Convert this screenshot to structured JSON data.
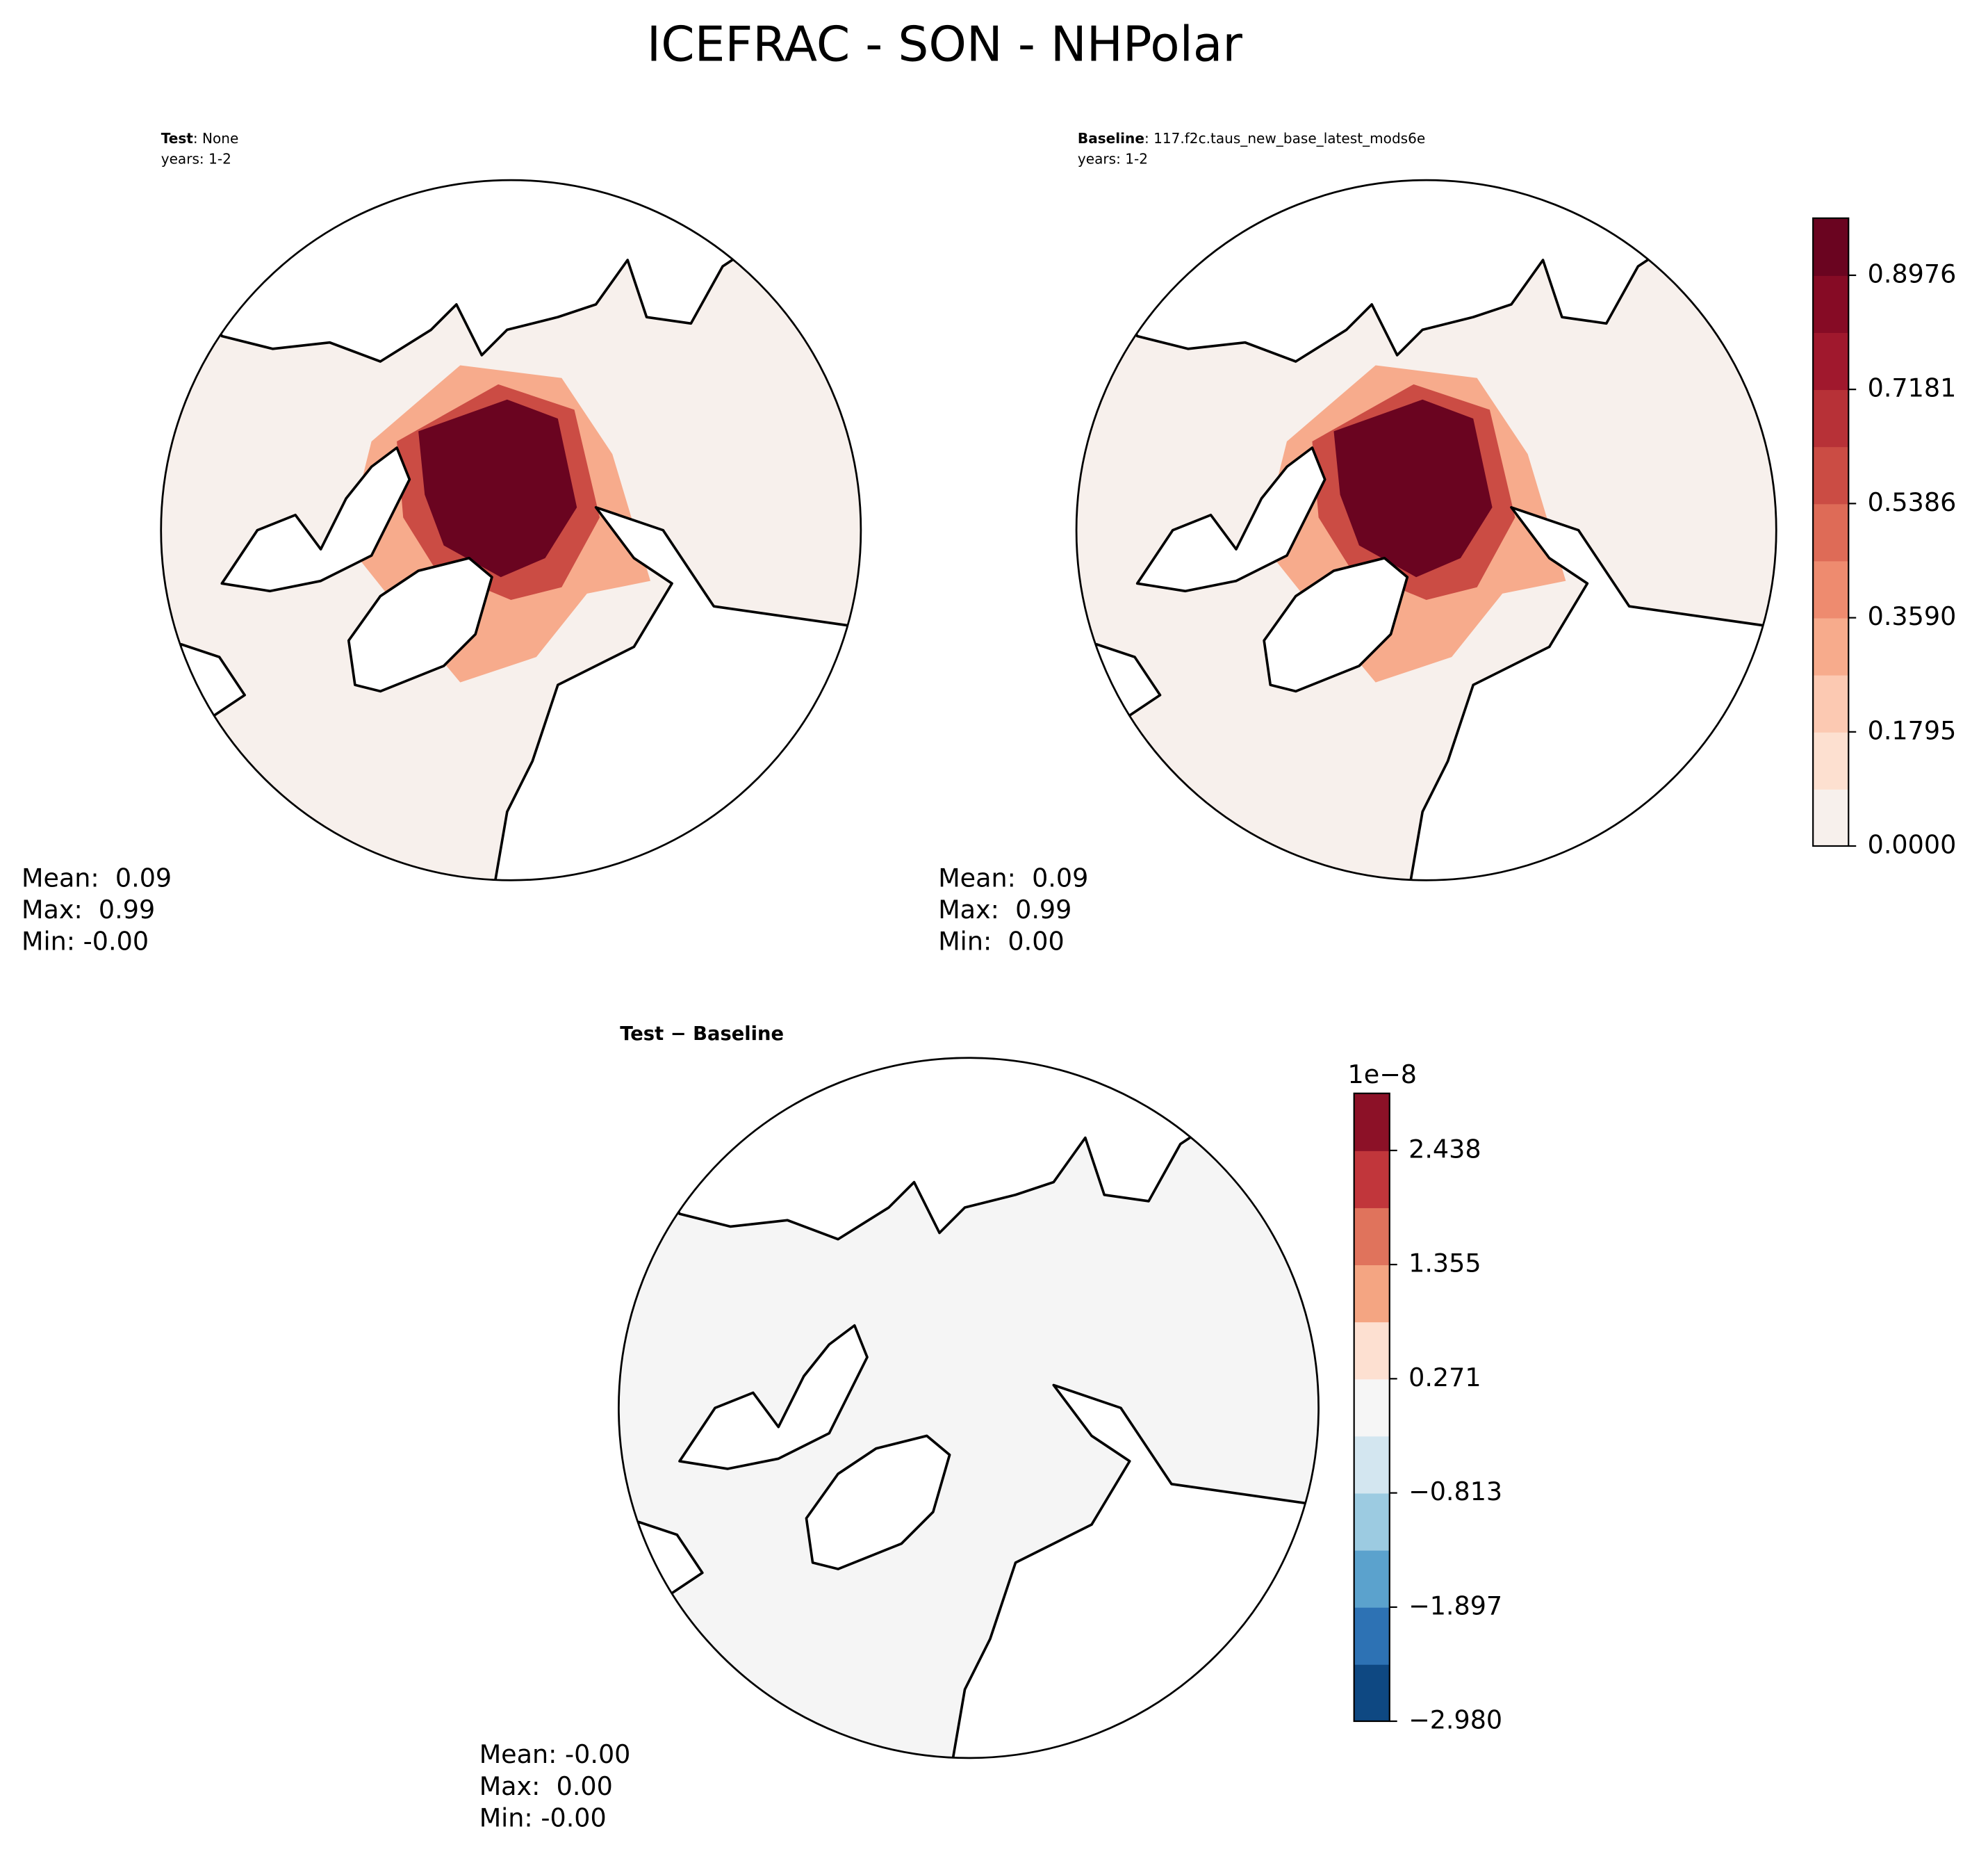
{
  "title": "ICEFRAC - SON - NHPolar",
  "panels": [
    {
      "label": "Test",
      "source": ": None",
      "years": "years: 1-2",
      "stats": [
        "Mean:  0.09",
        "Max:  0.99",
        "Min: -0.00"
      ]
    },
    {
      "label": "Baseline",
      "source": ": 117.f2c.taus_new_base_latest_mods6e",
      "years": "years: 1-2",
      "stats": [
        "Mean:  0.09",
        "Max:  0.99",
        "Min:  0.00"
      ]
    },
    {
      "label": "Test − Baseline",
      "stats": [
        "Mean: -0.00",
        "Max:  0.00",
        "Min: -0.00"
      ]
    }
  ],
  "colorbars": [
    {
      "lim": [
        0,
        0.9874
      ],
      "ticks": [
        {
          "value": 0,
          "label": "0.0000"
        },
        0.1795,
        {
          "value": 0.359,
          "label": "0.3590"
        },
        0.5386,
        0.7181,
        0.8976
      ],
      "colors": [
        "#f7f0ec",
        "#fde0d0",
        "#fcc9b2",
        "#f7ab8c",
        "#ee8b6f",
        "#de6b57",
        "#cb4c44",
        "#b73137",
        "#a0182d",
        "#860b25",
        "#6a0420"
      ]
    },
    {
      "lim": [
        -2.98,
        2.98
      ],
      "offset_label": "1e−8",
      "ticks": [
        {
          "value": -2.98,
          "label": "−2.980"
        },
        {
          "value": -1.897,
          "label": "−1.897"
        },
        {
          "value": -0.813,
          "label": "−0.813"
        },
        0.271,
        1.355,
        2.438
      ],
      "colors": [
        "#0e4882",
        "#2d72b4",
        "#5ba2cd",
        "#9ccbe1",
        "#d3e6f0",
        "#f6f6f6",
        "#fde0d1",
        "#f4a582",
        "#e0735c",
        "#c1363b",
        "#8c1127"
      ]
    }
  ]
}
